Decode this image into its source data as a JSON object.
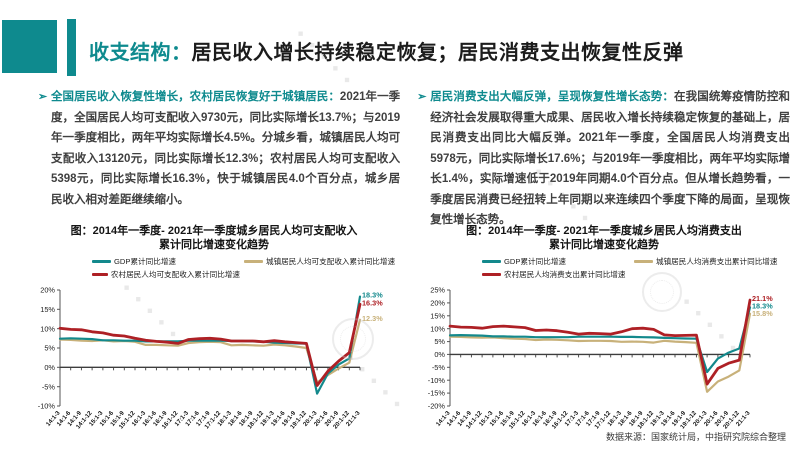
{
  "colors": {
    "accent_teal": "#0E8A8E",
    "line_gdp": "#13898C",
    "line_urban": "#C8B17A",
    "line_rural": "#AE2025"
  },
  "header": {
    "title_prefix": "收支结构：",
    "title_main": "居民收入增长持续稳定恢复；居民消费支出恢复性反弹"
  },
  "bullets": [
    {
      "marker": "➢",
      "lead": "全国居民收入恢复性增长，农村居民恢复好于城镇居民：",
      "body": "2021年一季度，全国居民人均可支配收入9730元，同比实际增长13.7%；与2019年一季度相比，两年平均实际增长4.5%。分城乡看，城镇居民人均可支配收入13120元，同比实际增长12.3%；农村居民人均可支配收入5398元，同比实际增长16.3%，快于城镇居民4.0个百分点，城乡居民收入相对差距继续缩小。"
    },
    {
      "marker": "➢",
      "lead": "居民消费支出大幅反弹，呈现恢复性增长态势：",
      "body": "在我国统筹疫情防控和经济社会发展取得重大成果、居民收入增长持续稳定恢复的基础上，居民消费支出同比大幅反弹。2021年一季度，全国居民人均消费支出5978元，同比实际增长17.6%；与2019年一季度相比，两年平均实际增长1.4%，实际增速低于2019年同期4.0个百分点。但从增长趋势看，一季度居民消费已经扭转上年同期以来连续四个季度下降的局面，呈现恢复性增长态势。"
    }
  ],
  "watermark": {
    "diamonds": "◆ ◆ ◆ ◆ ◆"
  },
  "footer": {
    "source": "数据来源：国家统计局，中指研究院综合整理"
  },
  "chart_data": [
    {
      "type": "line",
      "title_line1": "图：2014年一季度- 2021年一季度城乡居民人均可支配收入",
      "title_line2": "累计同比增速变化趋势",
      "ylim": [
        -10,
        20
      ],
      "y_tick_step": 5,
      "grid": false,
      "legend_position": "top",
      "draw_order": [
        1,
        0,
        2
      ],
      "categories": [
        "14:1-3",
        "14:1-6",
        "14:1-9",
        "14:1-12",
        "15:1-3",
        "15:1-6",
        "15:1-9",
        "15:1-12",
        "16:1-3",
        "16:1-6",
        "16:1-9",
        "16:1-12",
        "17:1-3",
        "17:1-6",
        "17:1-9",
        "17:1-12",
        "18:1-3",
        "18:1-6",
        "18:1-9",
        "18:1-12",
        "19:1-3",
        "19:1-6",
        "19:1-9",
        "19:1-12",
        "20:1-3",
        "20:1-6",
        "20:1-9",
        "20:1-12",
        "21:1-3"
      ],
      "series": [
        {
          "name": "GDP累计同比增速",
          "color": "#13898C",
          "end_label": "18.3%",
          "values": [
            7.4,
            7.5,
            7.4,
            7.3,
            7.0,
            7.0,
            6.9,
            6.9,
            6.7,
            6.7,
            6.7,
            6.7,
            6.9,
            6.9,
            6.9,
            6.9,
            6.8,
            6.8,
            6.7,
            6.6,
            6.4,
            6.3,
            6.2,
            6.1,
            -6.8,
            -1.6,
            0.7,
            2.3,
            18.3
          ]
        },
        {
          "name": "城镇居民人均可支配收入累计同比增速",
          "color": "#C8B17A",
          "end_label": "12.3%",
          "values": [
            7.2,
            7.1,
            6.9,
            6.8,
            7.0,
            6.7,
            6.8,
            6.6,
            5.8,
            5.8,
            5.7,
            5.6,
            6.3,
            6.5,
            6.6,
            6.5,
            5.7,
            5.8,
            5.7,
            5.6,
            5.9,
            5.7,
            5.4,
            5.0,
            -3.9,
            -2.0,
            -0.3,
            1.2,
            12.3
          ]
        },
        {
          "name": "农村居民人均可支配收入累计同比增速",
          "color": "#AE2025",
          "end_label": "16.3%",
          "values": [
            10.1,
            9.8,
            9.7,
            9.2,
            8.9,
            8.3,
            8.1,
            7.5,
            7.0,
            6.7,
            6.5,
            6.2,
            7.2,
            7.4,
            7.5,
            7.3,
            6.8,
            6.8,
            6.8,
            6.6,
            6.9,
            6.6,
            6.4,
            6.2,
            -4.7,
            -1.0,
            1.6,
            3.8,
            16.3
          ]
        }
      ]
    },
    {
      "type": "line",
      "title_line1": "图：2014年一季度- 2021年一季度城乡居民人均消费支出",
      "title_line2": "累计同比增速变化趋势",
      "ylim": [
        -20,
        25
      ],
      "y_tick_step": 5,
      "grid": false,
      "legend_position": "top",
      "draw_order": [
        1,
        0,
        2
      ],
      "categories": [
        "14:1-3",
        "14:1-6",
        "14:1-9",
        "14:1-12",
        "15:1-3",
        "15:1-6",
        "15:1-9",
        "15:1-12",
        "16:1-3",
        "16:1-6",
        "16:1-9",
        "16:1-12",
        "17:1-3",
        "17:1-6",
        "17:1-9",
        "17:1-12",
        "18:1-3",
        "18:1-6",
        "18:1-9",
        "18:1-12",
        "19:1-3",
        "19:1-6",
        "19:1-9",
        "19:1-12",
        "20:1-3",
        "20:1-6",
        "20:1-9",
        "20:1-12",
        "21:1-3"
      ],
      "series": [
        {
          "name": "GDP累计同比增速",
          "color": "#13898C",
          "end_label": "18.3%",
          "values": [
            7.4,
            7.5,
            7.4,
            7.3,
            7.0,
            7.0,
            6.9,
            6.9,
            6.7,
            6.7,
            6.7,
            6.7,
            6.9,
            6.9,
            6.9,
            6.9,
            6.8,
            6.8,
            6.7,
            6.6,
            6.4,
            6.3,
            6.2,
            6.1,
            -6.8,
            -1.6,
            0.7,
            2.3,
            18.3
          ]
        },
        {
          "name": "城镇居民人均消费支出累计同比增速",
          "color": "#C8B17A",
          "end_label": "15.8%",
          "values": [
            6.9,
            6.8,
            6.6,
            6.5,
            6.6,
            6.3,
            6.1,
            6.0,
            5.6,
            5.8,
            5.7,
            5.5,
            5.2,
            5.3,
            5.3,
            5.2,
            4.9,
            5.0,
            4.9,
            4.6,
            5.3,
            5.0,
            4.8,
            4.5,
            -14.5,
            -10.5,
            -8.6,
            -6.2,
            15.8
          ]
        },
        {
          "name": "农村居民人均消费支出累计同比增速",
          "color": "#AE2025",
          "end_label": "21.1%",
          "values": [
            11.0,
            10.6,
            10.5,
            10.2,
            10.8,
            11.0,
            10.7,
            10.4,
            9.3,
            9.5,
            9.2,
            8.6,
            7.9,
            8.2,
            8.1,
            7.9,
            8.8,
            10.0,
            10.2,
            9.7,
            7.6,
            7.3,
            7.4,
            7.5,
            -11.5,
            -5.4,
            -3.4,
            -2.2,
            21.1
          ]
        }
      ]
    }
  ]
}
